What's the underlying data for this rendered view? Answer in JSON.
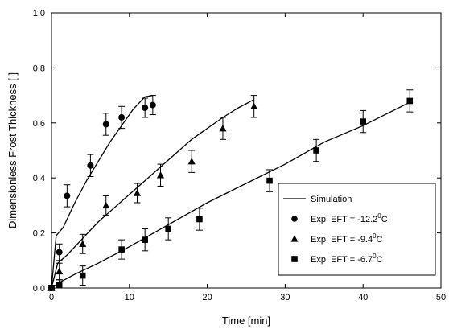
{
  "chart_data": {
    "type": "scatter",
    "xlabel": "Time [min]",
    "ylabel": "Dimensionless Frost Thickness [ ]",
    "xlim": [
      0,
      50
    ],
    "ylim": [
      0,
      1.0
    ],
    "x_ticks": [
      0,
      10,
      20,
      30,
      40,
      50
    ],
    "y_ticks": [
      0.0,
      0.2,
      0.4,
      0.6,
      0.8,
      1.0
    ],
    "x_tick_labels": [
      "0",
      "10",
      "20",
      "30",
      "40",
      "50"
    ],
    "y_tick_labels": [
      "0.0",
      "0.2",
      "0.4",
      "0.6",
      "0.8",
      "1.0"
    ],
    "grid": false,
    "legend_position": "bottom-right",
    "legend": {
      "simulation": "Simulation",
      "circle_prefix": "Exp: EFT = -12.2",
      "triangle_prefix": "Exp: EFT = -9.4",
      "square_prefix": "Exp: EFT = -6.7",
      "degree_sup": "0",
      "unit": "C"
    },
    "series": [
      {
        "name": "Exp: EFT = -12.2°C",
        "marker": "circle",
        "x": [
          0,
          1,
          2,
          5,
          7,
          9,
          12,
          13
        ],
        "y": [
          0.0,
          0.13,
          0.335,
          0.445,
          0.595,
          0.62,
          0.655,
          0.665
        ],
        "error": [
          0.01,
          0.03,
          0.04,
          0.04,
          0.04,
          0.04,
          0.035,
          0.035
        ]
      },
      {
        "name": "Exp: EFT = -9.4°C",
        "marker": "triangle",
        "x": [
          0,
          1,
          4,
          7,
          11,
          14,
          18,
          22,
          26
        ],
        "y": [
          0.0,
          0.06,
          0.16,
          0.3,
          0.345,
          0.41,
          0.46,
          0.58,
          0.66
        ],
        "error": [
          0.01,
          0.03,
          0.035,
          0.035,
          0.035,
          0.04,
          0.04,
          0.04,
          0.04
        ]
      },
      {
        "name": "Exp: EFT = -6.7°C",
        "marker": "square",
        "x": [
          0,
          1,
          4,
          9,
          12,
          15,
          19,
          28,
          34,
          40,
          46
        ],
        "y": [
          0.0,
          0.01,
          0.045,
          0.14,
          0.175,
          0.215,
          0.25,
          0.39,
          0.5,
          0.605,
          0.68
        ],
        "error": [
          0.01,
          0.02,
          0.035,
          0.035,
          0.04,
          0.04,
          0.04,
          0.04,
          0.04,
          0.04,
          0.04
        ]
      }
    ],
    "simulation_lines": [
      {
        "x": [
          0,
          0.6,
          1.5,
          3,
          4.5,
          6,
          7.5,
          9,
          10.5,
          12,
          13
        ],
        "y": [
          0.0,
          0.19,
          0.22,
          0.31,
          0.39,
          0.46,
          0.53,
          0.59,
          0.65,
          0.695,
          0.7
        ]
      },
      {
        "x": [
          0,
          0.8,
          2,
          4,
          6,
          8,
          10,
          12,
          14,
          16,
          18,
          20,
          22,
          24,
          26
        ],
        "y": [
          0.0,
          0.09,
          0.12,
          0.18,
          0.24,
          0.29,
          0.34,
          0.39,
          0.44,
          0.49,
          0.54,
          0.58,
          0.62,
          0.655,
          0.685
        ]
      },
      {
        "x": [
          0,
          1,
          3,
          6,
          10,
          15,
          20,
          25,
          30,
          35,
          40,
          46
        ],
        "y": [
          0.0,
          0.02,
          0.05,
          0.09,
          0.15,
          0.23,
          0.31,
          0.38,
          0.45,
          0.53,
          0.59,
          0.675
        ]
      }
    ]
  }
}
